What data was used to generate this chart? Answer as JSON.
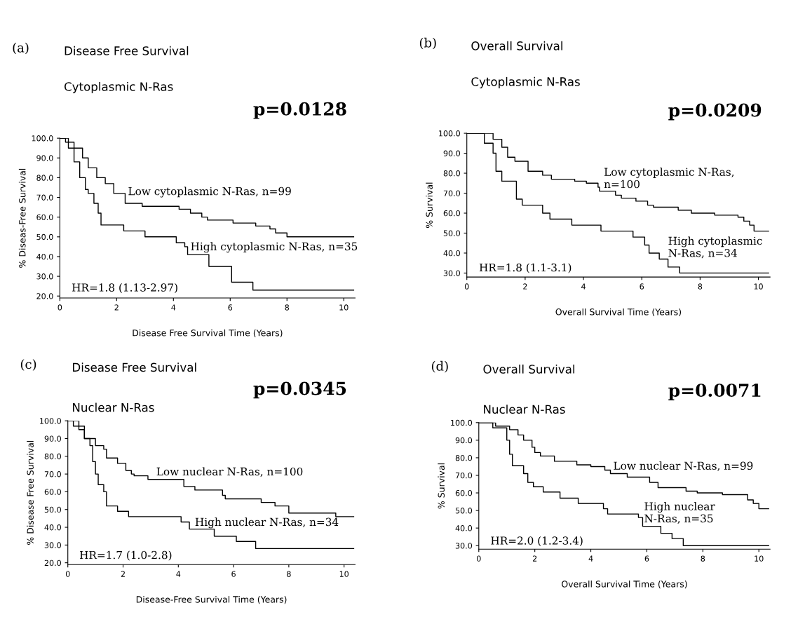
{
  "chart_data": [
    {
      "type": "step",
      "title": "Disease Free Survival",
      "subtitle": "Cytoplasmic N-Ras",
      "xlabel": "Disease Free Survival Time (Years)",
      "ylabel": "% Diseas-Free Survival",
      "xlim": [
        0,
        10.4
      ],
      "xticks": [
        0,
        2,
        4,
        6,
        8,
        10
      ],
      "ylim": [
        19,
        100
      ],
      "yticks": [
        {
          "value": 20,
          "label": "20.0"
        },
        {
          "value": 30,
          "label": "30.0"
        },
        {
          "value": 40,
          "label": "40.0"
        },
        {
          "value": 50,
          "label": "50.0"
        },
        {
          "value": 60,
          "label": "60.0"
        },
        {
          "value": 70,
          "label": "70.0"
        },
        {
          "value": 80,
          "label": "80.0"
        },
        {
          "value": 90,
          "label": "90.0"
        },
        {
          "value": 100,
          "label": "100.0"
        }
      ],
      "grid": false,
      "legend": false,
      "series": [
        {
          "color": "#000000",
          "x": [
            0,
            0.2,
            0.5,
            0.8,
            1.0,
            1.3,
            1.6,
            1.9,
            2.3,
            2.9,
            4.2,
            4.6,
            5.0,
            5.2,
            6.1,
            6.9,
            7.4,
            7.6,
            8.0,
            9.6,
            10.35
          ],
          "values": [
            100,
            98,
            95,
            90,
            85,
            80,
            77,
            72,
            67,
            65.5,
            64,
            62,
            60,
            58.5,
            57,
            55.5,
            54,
            52,
            50,
            50,
            50
          ]
        },
        {
          "color": "#000000",
          "x": [
            0,
            0.3,
            0.5,
            0.7,
            0.9,
            1.0,
            1.2,
            1.35,
            1.45,
            2.25,
            3.0,
            4.1,
            4.4,
            4.5,
            5.25,
            6.05,
            6.8,
            10.35
          ],
          "values": [
            100,
            95,
            88,
            80,
            74,
            72,
            67,
            62,
            56,
            53,
            50,
            47,
            45,
            41,
            35,
            27,
            23,
            23
          ]
        }
      ],
      "annotations": [
        "(a)",
        "p=0.0128",
        "HR=1.8 (1.13-2.97)",
        {
          "text": "Low cytoplasmic N-Ras, n=99",
          "x": 2.4,
          "y": 70
        },
        {
          "text": "High cytoplasmic N-Ras, n=35",
          "x": 4.6,
          "y": 42
        }
      ]
    },
    {
      "type": "step",
      "title": "Overall Survival",
      "subtitle": "Cytoplasmic N-Ras",
      "xlabel": "Overall Survival Time (Years)",
      "ylabel": "% Survival",
      "xlim": [
        0,
        10.4
      ],
      "xticks": [
        0,
        2,
        4,
        6,
        8,
        10
      ],
      "ylim": [
        28,
        100
      ],
      "yticks": [
        {
          "value": 30,
          "label": "30.0"
        },
        {
          "value": 40,
          "label": "40.0"
        },
        {
          "value": 50,
          "label": "50.0"
        },
        {
          "value": 60,
          "label": "60.0"
        },
        {
          "value": 70,
          "label": "70.0"
        },
        {
          "value": 80,
          "label": "80.0"
        },
        {
          "value": 90,
          "label": "90.0"
        },
        {
          "value": 100,
          "label": "100.0"
        }
      ],
      "grid": false,
      "legend": false,
      "series": [
        {
          "color": "#000000",
          "x": [
            0,
            0.9,
            1.2,
            1.4,
            1.65,
            2.1,
            2.6,
            2.9,
            3.7,
            4.1,
            4.5,
            4.55,
            5.1,
            5.3,
            5.8,
            6.2,
            6.4,
            7.25,
            7.7,
            8.5,
            9.3,
            9.5,
            9.7,
            9.85,
            10.35
          ],
          "values": [
            100,
            97,
            93,
            88,
            86,
            81,
            79,
            77,
            76,
            75,
            73,
            71,
            69,
            67.5,
            66,
            64,
            63,
            61.5,
            60,
            59,
            58,
            56,
            54,
            51,
            51
          ]
        },
        {
          "color": "#000000",
          "x": [
            0,
            0.6,
            0.9,
            1.0,
            1.2,
            1.7,
            1.9,
            2.6,
            2.85,
            3.6,
            4.6,
            5.7,
            6.1,
            6.25,
            6.6,
            6.9,
            7.3,
            10.35
          ],
          "values": [
            100,
            95,
            90,
            81,
            76,
            67,
            64,
            60,
            57,
            54,
            51,
            48,
            44,
            40,
            37,
            33,
            30,
            30
          ]
        }
      ],
      "annotations": [
        "(b)",
        "p=0.0209",
        "HR=1.8 (1.1-3.1)",
        {
          "text": "Low cytoplasmic N-Ras,\nn=100",
          "x": 4.7,
          "y": 71.5
        },
        {
          "text": "High cytoplasmic\nN-Ras, n=34",
          "x": 6.9,
          "y": 37
        }
      ]
    },
    {
      "type": "step",
      "title": "Disease Free Survival",
      "subtitle": "Nuclear N-Ras",
      "xlabel": "Disease-Free Survival Time (Years)",
      "ylabel": "% Disease Free Survival",
      "xlim": [
        0,
        10.4
      ],
      "xticks": [
        0,
        2,
        4,
        6,
        8,
        10
      ],
      "ylim": [
        19,
        100
      ],
      "yticks": [
        {
          "value": 20,
          "label": "20.0"
        },
        {
          "value": 30,
          "label": "30.0"
        },
        {
          "value": 40,
          "label": "40.0"
        },
        {
          "value": 50,
          "label": "50.0"
        },
        {
          "value": 60,
          "label": "60.0"
        },
        {
          "value": 70,
          "label": "70.0"
        },
        {
          "value": 80,
          "label": "80.0"
        },
        {
          "value": 90,
          "label": "90.0"
        },
        {
          "value": 100,
          "label": "100.0"
        }
      ],
      "grid": false,
      "legend": false,
      "series": [
        {
          "color": "#000000",
          "x": [
            0,
            0.4,
            0.6,
            1.0,
            1.3,
            1.4,
            1.8,
            2.1,
            2.3,
            2.4,
            2.9,
            4.2,
            4.6,
            5.6,
            5.7,
            7.0,
            7.5,
            8.0,
            9.7,
            10.35
          ],
          "values": [
            100,
            95,
            90,
            86,
            84,
            79,
            76,
            72,
            70,
            69,
            67,
            63,
            61,
            58,
            56,
            54,
            52,
            48,
            46,
            46
          ]
        },
        {
          "color": "#000000",
          "x": [
            0,
            0.2,
            0.6,
            0.8,
            0.9,
            1.0,
            1.1,
            1.3,
            1.4,
            1.8,
            2.2,
            4.1,
            4.4,
            5.3,
            6.1,
            6.8,
            10.35
          ],
          "values": [
            100,
            97,
            90,
            86,
            77,
            70,
            64,
            60,
            52,
            49,
            46,
            43,
            39,
            35,
            32,
            28,
            28
          ]
        }
      ],
      "annotations": [
        "(c)",
        "p=0.0345",
        "HR=1.7 (1.0-2.8)",
        {
          "text": "Low nuclear N-Ras, n=100",
          "x": 3.2,
          "y": 68
        },
        {
          "text": "High nuclear N-Ras, n=34",
          "x": 4.6,
          "y": 39.5
        }
      ]
    },
    {
      "type": "step",
      "title": "Overall Survival",
      "subtitle": "Nuclear N-Ras",
      "xlabel": "Overall Survival Time (Years)",
      "ylabel": "% Survival",
      "xlim": [
        0,
        10.4
      ],
      "xticks": [
        0,
        2,
        4,
        6,
        8,
        10
      ],
      "ylim": [
        28,
        100
      ],
      "yticks": [
        {
          "value": 30,
          "label": "30.0"
        },
        {
          "value": 40,
          "label": "40.0"
        },
        {
          "value": 50,
          "label": "50.0"
        },
        {
          "value": 60,
          "label": "60.0"
        },
        {
          "value": 70,
          "label": "70.0"
        },
        {
          "value": 80,
          "label": "80.0"
        },
        {
          "value": 90,
          "label": "90.0"
        },
        {
          "value": 100,
          "label": "100.0"
        }
      ],
      "grid": false,
      "legend": false,
      "series": [
        {
          "color": "#000000",
          "x": [
            0,
            0.6,
            1.1,
            1.4,
            1.6,
            1.9,
            2.0,
            2.2,
            2.7,
            3.5,
            4.0,
            4.5,
            4.7,
            5.3,
            6.1,
            6.4,
            7.4,
            7.8,
            8.7,
            9.6,
            9.8,
            10.0,
            10.35
          ],
          "values": [
            100,
            98,
            96,
            93,
            90,
            86,
            83,
            81,
            78,
            76,
            75,
            73,
            71,
            69,
            66,
            63,
            61,
            60,
            59,
            56,
            54,
            51,
            51
          ]
        },
        {
          "color": "#000000",
          "x": [
            0,
            0.5,
            1.0,
            1.1,
            1.2,
            1.6,
            1.75,
            1.95,
            2.3,
            2.9,
            3.55,
            4.45,
            4.6,
            5.7,
            5.85,
            6.5,
            6.9,
            7.3,
            10.35
          ],
          "values": [
            100,
            97,
            90,
            82,
            75.5,
            71,
            66,
            63.5,
            60.5,
            57,
            54,
            51,
            48,
            46,
            41,
            37,
            34,
            30,
            30
          ]
        }
      ],
      "annotations": [
        "(d)",
        "p=0.0071",
        "HR=2.0 (1.2-3.4)",
        {
          "text": "Low nuclear N-Ras, n=99",
          "x": 4.8,
          "y": 72
        },
        {
          "text": "High nuclear\nN-Ras, n=35",
          "x": 5.9,
          "y": 42
        }
      ]
    }
  ]
}
